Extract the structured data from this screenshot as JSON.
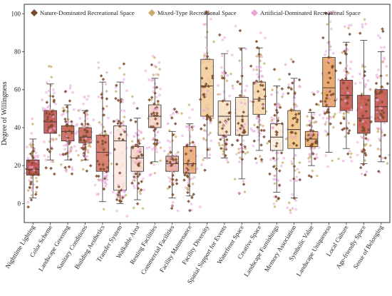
{
  "chart_data": {
    "type": "boxplot",
    "ylabel": "Degree of Willingness",
    "xlabel": "",
    "ylim": [
      -10,
      105
    ],
    "yticks": [
      0,
      20,
      40,
      60,
      80,
      100
    ],
    "grid": false,
    "legend_position": "top",
    "legend": [
      {
        "key": "nature",
        "label": "Nature-Dominated Recreational Space",
        "color": "#7a4a2c",
        "marker": "diamond"
      },
      {
        "key": "mixed",
        "label": "Mixed-Type Recreational Space",
        "color": "#c9ac6d",
        "marker": "diamond"
      },
      {
        "key": "artificial",
        "label": "Artificial-Dominated Recreational Space",
        "color": "#e8a6d8",
        "marker": "diamond"
      }
    ],
    "categories": [
      {
        "label": "Nighttime Lighting",
        "min": 3,
        "q1": 15,
        "median": 18,
        "q3": 23,
        "max": 34,
        "color": "#b83a3a"
      },
      {
        "label": "Color Scheme",
        "min": 23,
        "q1": 37,
        "median": 43,
        "q3": 49,
        "max": 63,
        "color": "#c04545"
      },
      {
        "label": "Landscape Greening",
        "min": 23,
        "q1": 33,
        "median": 38,
        "q3": 41,
        "max": 52,
        "color": "#c65a4a"
      },
      {
        "label": "Sanitary Conditions",
        "min": 23,
        "q1": 32,
        "median": 35,
        "q3": 40,
        "max": 49,
        "color": "#c65a4a"
      },
      {
        "label": "Building Aesthetics",
        "min": 1,
        "q1": 17,
        "median": 27,
        "q3": 36,
        "max": 64,
        "color": "#cf6a58"
      },
      {
        "label": "Transfer System",
        "min": 0,
        "q1": 7,
        "median": 33,
        "q3": 41,
        "max": 64,
        "color": "#fbe6de"
      },
      {
        "label": "Walkable Area",
        "min": 2,
        "q1": 17,
        "median": 24,
        "q3": 30,
        "max": 45,
        "color": "#f6d3c7"
      },
      {
        "label": "Resting Facilities",
        "min": 22,
        "q1": 40,
        "median": 46,
        "q3": 52,
        "max": 66,
        "color": "#f3cfc3"
      },
      {
        "label": "Commercial Facilities",
        "min": 3,
        "q1": 17,
        "median": 21,
        "q3": 25,
        "max": 38,
        "color": "#eaa898"
      },
      {
        "label": "Facility Maintenance",
        "min": 4,
        "q1": 16,
        "median": 21,
        "q3": 30,
        "max": 42,
        "color": "#e8a46a"
      },
      {
        "label": "Facility Diversity",
        "min": 24,
        "q1": 46,
        "median": 62,
        "q3": 76,
        "max": 100,
        "color": "#f0c893"
      },
      {
        "label": "Spatial Support for Events",
        "min": 24,
        "q1": 36,
        "median": 46,
        "q3": 54,
        "max": 79,
        "color": "#f7e1bf"
      },
      {
        "label": "Waterfront Space",
        "min": 13,
        "q1": 36,
        "median": 46,
        "q3": 56,
        "max": 82,
        "color": "#f8e3c4"
      },
      {
        "label": "Creative Space",
        "min": 28,
        "q1": 47,
        "median": 55,
        "q3": 64,
        "max": 82,
        "color": "#f5d5a5"
      },
      {
        "label": "Landscape Furnishings",
        "min": 6,
        "q1": 28,
        "median": 35,
        "q3": 42,
        "max": 62,
        "color": "#fdf2e2"
      },
      {
        "label": "Memory Association",
        "min": 3,
        "q1": 29,
        "median": 39,
        "q3": 49,
        "max": 66,
        "color": "#efc27e"
      },
      {
        "label": "Symbolic Value",
        "min": 20,
        "q1": 30,
        "median": 34,
        "q3": 38,
        "max": 48,
        "color": "#e8aa5c"
      },
      {
        "label": "Landscape Uniqueness",
        "min": 27,
        "q1": 51,
        "median": 61,
        "q3": 77,
        "max": 100,
        "color": "#e49a56"
      },
      {
        "label": "Local Culture",
        "min": 29,
        "q1": 49,
        "median": 57,
        "q3": 65,
        "max": 85,
        "color": "#c0473d"
      },
      {
        "label": "Age-friendly Space",
        "min": 21,
        "q1": 37,
        "median": 45,
        "q3": 57,
        "max": 86,
        "color": "#c0473d"
      },
      {
        "label": "Sense of Belonging",
        "min": 22,
        "q1": 43,
        "median": 51,
        "q3": 60,
        "max": 80,
        "color": "#c0473d"
      }
    ]
  }
}
